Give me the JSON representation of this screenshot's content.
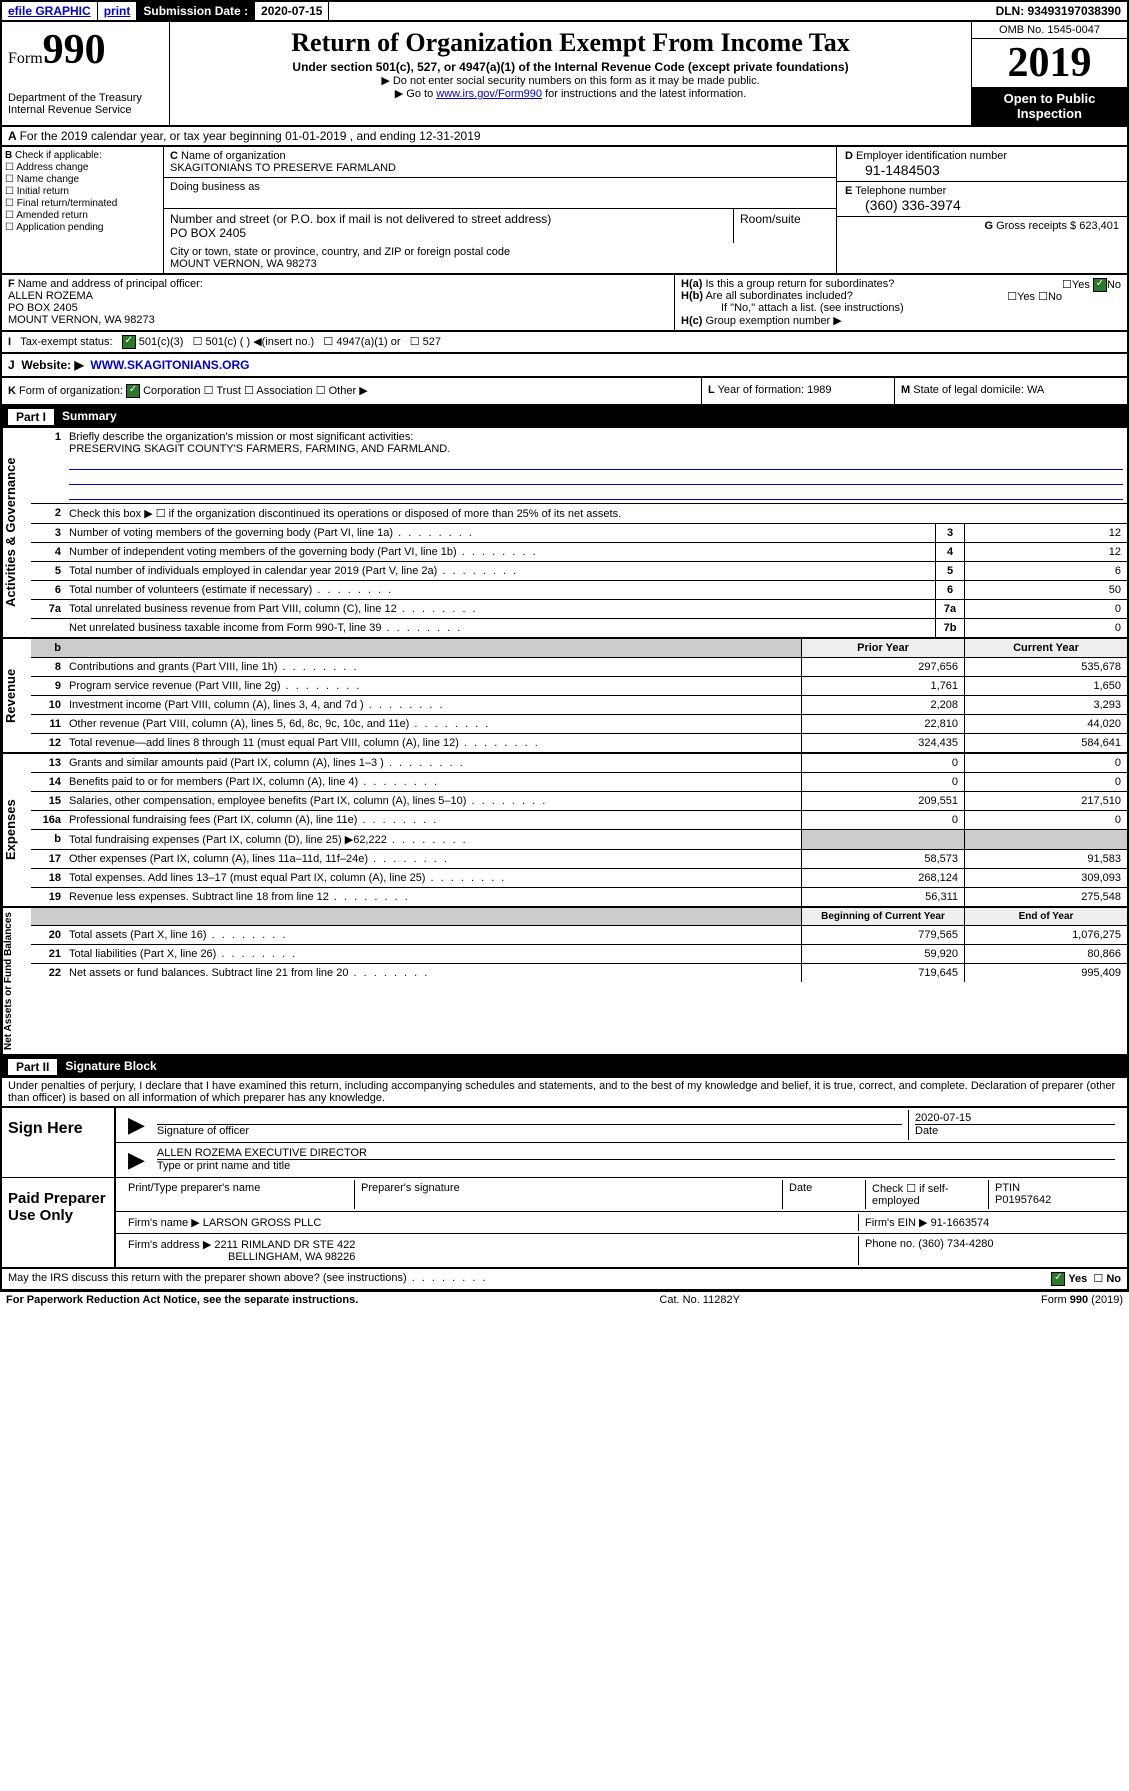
{
  "topbar": {
    "efile": "efile GRAPHIC",
    "print": "print",
    "subLabel": "Submission Date :",
    "subDate": "2020-07-15",
    "dln": "DLN: 93493197038390"
  },
  "header": {
    "formWord": "Form",
    "formNum": "990",
    "dept": "Department of the Treasury\nInternal Revenue Service",
    "title": "Return of Organization Exempt From Income Tax",
    "sub1": "Under section 501(c), 527, or 4947(a)(1) of the Internal Revenue Code (except private foundations)",
    "sub2": "▶ Do not enter social security numbers on this form as it may be made public.",
    "sub3a": "▶ Go to ",
    "sub3link": "www.irs.gov/Form990",
    "sub3b": " for instructions and the latest information.",
    "omb": "OMB No. 1545-0047",
    "year": "2019",
    "open": "Open to Public Inspection"
  },
  "A": {
    "text": "For the 2019 calendar year, or tax year beginning 01-01-2019   , and ending 12-31-2019"
  },
  "B": {
    "label": "Check if applicable:",
    "items": [
      "Address change",
      "Name change",
      "Initial return",
      "Final return/terminated",
      "Amended return",
      "Application pending"
    ]
  },
  "C": {
    "nameLabel": "Name of organization",
    "name": "SKAGITONIANS TO PRESERVE FARMLAND",
    "dbaLabel": "Doing business as",
    "dba": "",
    "addrLabel": "Number and street (or P.O. box if mail is not delivered to street address)",
    "addr": "PO BOX 2405",
    "roomLabel": "Room/suite",
    "cityLabel": "City or town, state or province, country, and ZIP or foreign postal code",
    "city": "MOUNT VERNON, WA  98273"
  },
  "D": {
    "label": "Employer identification number",
    "val": "91-1484503"
  },
  "E": {
    "label": "Telephone number",
    "val": "(360) 336-3974"
  },
  "G": {
    "label": "Gross receipts $",
    "val": "623,401"
  },
  "F": {
    "label": "Name and address of principal officer:",
    "name": "ALLEN ROZEMA",
    "addr": "PO BOX 2405",
    "city": "MOUNT VERNON, WA  98273"
  },
  "H": {
    "a": "Is this a group return for subordinates?",
    "b": "Are all subordinates included?",
    "bnote": "If \"No,\" attach a list. (see instructions)",
    "c": "Group exemption number ▶",
    "yes": "Yes",
    "no": "No"
  },
  "tax": {
    "label": "Tax-exempt status:",
    "o1": "501(c)(3)",
    "o2": "501(c) (   ) ◀(insert no.)",
    "o3": "4947(a)(1) or",
    "o4": "527"
  },
  "J": {
    "label": "Website: ▶",
    "val": "WWW.SKAGITONIANS.ORG"
  },
  "K": {
    "label": "Form of organization:",
    "opts": [
      "Corporation",
      "Trust",
      "Association",
      "Other ▶"
    ],
    "L": "Year of formation: 1989",
    "M": "State of legal domicile: WA"
  },
  "part1": {
    "num": "Part I",
    "title": "Summary"
  },
  "summary": {
    "governance": {
      "label": "Activities & Governance",
      "l1": "Briefly describe the organization's mission or most significant activities:",
      "l1v": "PRESERVING SKAGIT COUNTY'S FARMERS, FARMING, AND FARMLAND.",
      "l2": "Check this box ▶ ☐  if the organization discontinued its operations or disposed of more than 25% of its net assets.",
      "rows": [
        {
          "n": "3",
          "d": "Number of voting members of the governing body (Part VI, line 1a)",
          "b": "3",
          "v": "12"
        },
        {
          "n": "4",
          "d": "Number of independent voting members of the governing body (Part VI, line 1b)",
          "b": "4",
          "v": "12"
        },
        {
          "n": "5",
          "d": "Total number of individuals employed in calendar year 2019 (Part V, line 2a)",
          "b": "5",
          "v": "6"
        },
        {
          "n": "6",
          "d": "Total number of volunteers (estimate if necessary)",
          "b": "6",
          "v": "50"
        },
        {
          "n": "7a",
          "d": "Total unrelated business revenue from Part VIII, column (C), line 12",
          "b": "7a",
          "v": "0"
        },
        {
          "n": "",
          "d": "Net unrelated business taxable income from Form 990-T, line 39",
          "b": "7b",
          "v": "0"
        }
      ]
    },
    "colHead": {
      "py": "Prior Year",
      "cy": "Current Year"
    },
    "revenue": {
      "label": "Revenue",
      "rows": [
        {
          "n": "8",
          "d": "Contributions and grants (Part VIII, line 1h)",
          "py": "297,656",
          "cy": "535,678"
        },
        {
          "n": "9",
          "d": "Program service revenue (Part VIII, line 2g)",
          "py": "1,761",
          "cy": "1,650"
        },
        {
          "n": "10",
          "d": "Investment income (Part VIII, column (A), lines 3, 4, and 7d )",
          "py": "2,208",
          "cy": "3,293"
        },
        {
          "n": "11",
          "d": "Other revenue (Part VIII, column (A), lines 5, 6d, 8c, 9c, 10c, and 11e)",
          "py": "22,810",
          "cy": "44,020"
        },
        {
          "n": "12",
          "d": "Total revenue—add lines 8 through 11 (must equal Part VIII, column (A), line 12)",
          "py": "324,435",
          "cy": "584,641"
        }
      ]
    },
    "expenses": {
      "label": "Expenses",
      "rows": [
        {
          "n": "13",
          "d": "Grants and similar amounts paid (Part IX, column (A), lines 1–3 )",
          "py": "0",
          "cy": "0"
        },
        {
          "n": "14",
          "d": "Benefits paid to or for members (Part IX, column (A), line 4)",
          "py": "0",
          "cy": "0"
        },
        {
          "n": "15",
          "d": "Salaries, other compensation, employee benefits (Part IX, column (A), lines 5–10)",
          "py": "209,551",
          "cy": "217,510"
        },
        {
          "n": "16a",
          "d": "Professional fundraising fees (Part IX, column (A), line 11e)",
          "py": "0",
          "cy": "0"
        },
        {
          "n": "b",
          "d": "Total fundraising expenses (Part IX, column (D), line 25) ▶62,222",
          "py": "shade",
          "cy": "shade"
        },
        {
          "n": "17",
          "d": "Other expenses (Part IX, column (A), lines 11a–11d, 11f–24e)",
          "py": "58,573",
          "cy": "91,583"
        },
        {
          "n": "18",
          "d": "Total expenses. Add lines 13–17 (must equal Part IX, column (A), line 25)",
          "py": "268,124",
          "cy": "309,093"
        },
        {
          "n": "19",
          "d": "Revenue less expenses. Subtract line 18 from line 12",
          "py": "56,311",
          "cy": "275,548"
        }
      ]
    },
    "net": {
      "label": "Net Assets or Fund Balances",
      "head": {
        "py": "Beginning of Current Year",
        "cy": "End of Year"
      },
      "rows": [
        {
          "n": "20",
          "d": "Total assets (Part X, line 16)",
          "py": "779,565",
          "cy": "1,076,275"
        },
        {
          "n": "21",
          "d": "Total liabilities (Part X, line 26)",
          "py": "59,920",
          "cy": "80,866"
        },
        {
          "n": "22",
          "d": "Net assets or fund balances. Subtract line 21 from line 20",
          "py": "719,645",
          "cy": "995,409"
        }
      ]
    }
  },
  "part2": {
    "num": "Part II",
    "title": "Signature Block"
  },
  "perjury": "Under penalties of perjury, I declare that I have examined this return, including accompanying schedules and statements, and to the best of my knowledge and belief, it is true, correct, and complete. Declaration of preparer (other than officer) is based on all information of which preparer has any knowledge.",
  "sign": {
    "label": "Sign Here",
    "sigLabel": "Signature of officer",
    "date": "2020-07-15",
    "dateLabel": "Date",
    "name": "ALLEN ROZEMA  EXECUTIVE DIRECTOR",
    "nameLabel": "Type or print name and title"
  },
  "paid": {
    "label": "Paid Preparer Use Only",
    "h1": "Print/Type preparer's name",
    "h2": "Preparer's signature",
    "h3": "Date",
    "h4": "Check ☐ if self-employed",
    "h5": "PTIN",
    "ptin": "P01957642",
    "firmLabel": "Firm's name    ▶",
    "firm": "LARSON GROSS PLLC",
    "einLabel": "Firm's EIN ▶",
    "ein": "91-1663574",
    "addrLabel": "Firm's address ▶",
    "addr": "2211 RIMLAND DR STE 422",
    "city": "BELLINGHAM, WA  98226",
    "phoneLabel": "Phone no.",
    "phone": "(360) 734-4280"
  },
  "discuss": {
    "q": "May the IRS discuss this return with the preparer shown above? (see instructions)",
    "yes": "Yes",
    "no": "No"
  },
  "footer": {
    "l": "For Paperwork Reduction Act Notice, see the separate instructions.",
    "m": "Cat. No. 11282Y",
    "r": "Form 990 (2019)"
  }
}
